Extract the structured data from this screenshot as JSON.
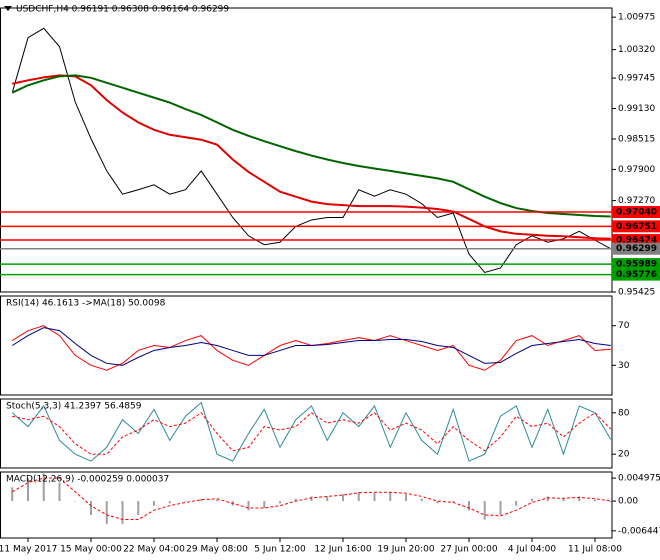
{
  "chart_data": [
    {
      "type": "line",
      "title": "USDCHF,H4 0.96191 0.96308 0.96164 0.96299",
      "ylim": [
        0.95425,
        1.0116
      ],
      "yticks": [
        1.00975,
        {
          "value": 1.0032,
          "label": "1.00320"
        },
        0.99745,
        {
          "value": 0.9913,
          "label": "0.99130"
        },
        0.98515,
        {
          "value": 0.979,
          "label": "0.97900"
        },
        {
          "value": 0.9727,
          "label": "0.97270"
        },
        0.95425
      ],
      "series": [
        {
          "color": "#000000",
          "values": [
            0.9945,
            1.0056,
            1.0075,
            1.0038,
            0.9926,
            0.9852,
            0.9787,
            0.974,
            0.9749,
            0.9759,
            0.974,
            0.9749,
            0.9787,
            0.974,
            0.9693,
            0.9656,
            0.9638,
            0.9643,
            0.9675,
            0.9688,
            0.9693,
            0.9693,
            0.9749,
            0.9736,
            0.9749,
            0.974,
            0.9721,
            0.9693,
            0.9702,
            0.9619,
            0.9582,
            0.9591,
            0.9638,
            0.9656,
            0.9643,
            0.965,
            0.9665,
            0.9647,
            0.96299
          ]
        },
        {
          "color": "#e00000",
          "values": [
            0.9963,
            0.997,
            0.9976,
            0.998,
            0.9978,
            0.996,
            0.993,
            0.9905,
            0.9885,
            0.987,
            0.986,
            0.9855,
            0.985,
            0.984,
            0.981,
            0.9785,
            0.9765,
            0.9745,
            0.9735,
            0.9725,
            0.972,
            0.9718,
            0.9716,
            0.9716,
            0.9716,
            0.9715,
            0.9713,
            0.971,
            0.9705,
            0.969,
            0.9675,
            0.9665,
            0.966,
            0.9658,
            0.9656,
            0.9655,
            0.9653,
            0.9651,
            0.965
          ]
        },
        {
          "color": "#006400",
          "values": [
            0.9945,
            0.996,
            0.997,
            0.9978,
            0.998,
            0.9975,
            0.9965,
            0.9955,
            0.9945,
            0.9935,
            0.9925,
            0.9912,
            0.99,
            0.9885,
            0.987,
            0.9858,
            0.9847,
            0.9837,
            0.9827,
            0.9818,
            0.981,
            0.9803,
            0.9797,
            0.9792,
            0.9787,
            0.9782,
            0.9777,
            0.9772,
            0.9765,
            0.975,
            0.9735,
            0.9722,
            0.9712,
            0.9706,
            0.9702,
            0.97,
            0.9698,
            0.9696,
            0.9695
          ]
        }
      ],
      "levels": [
        {
          "value": 0.9704,
          "label": "0.97040",
          "color": "#ff0000"
        },
        {
          "value": 0.96751,
          "color": "#ff0000"
        },
        {
          "value": 0.96474,
          "color": "#ff0000"
        },
        {
          "value": 0.96299,
          "color": "#808080"
        },
        {
          "value": 0.95989,
          "color": "#00a000"
        },
        {
          "value": 0.95776,
          "color": "#00a000"
        }
      ]
    },
    {
      "type": "line",
      "title": "RSI(14) 46.1613 ->MA(18) 50.0098",
      "ylim": [
        0,
        100
      ],
      "yticks": [
        70,
        30
      ],
      "series": [
        {
          "color": "#ff0000",
          "values": [
            55,
            65,
            70,
            60,
            40,
            30,
            25,
            32,
            45,
            50,
            48,
            55,
            60,
            45,
            35,
            30,
            40,
            50,
            55,
            50,
            52,
            55,
            58,
            55,
            60,
            55,
            50,
            45,
            50,
            30,
            25,
            35,
            55,
            60,
            50,
            55,
            60,
            45,
            46.1613
          ]
        },
        {
          "color": "#000080",
          "values": [
            50,
            60,
            68,
            65,
            52,
            40,
            32,
            30,
            38,
            45,
            48,
            50,
            53,
            50,
            45,
            40,
            40,
            45,
            50,
            50,
            51,
            53,
            55,
            55,
            56,
            56,
            54,
            50,
            48,
            40,
            32,
            33,
            42,
            50,
            52,
            54,
            56,
            52,
            50.0098
          ]
        }
      ]
    },
    {
      "type": "line",
      "title": "Stoch(5,3,3) 41.2397 56.4859",
      "ylim": [
        0,
        100
      ],
      "yticks": [
        80,
        20
      ],
      "series": [
        {
          "color": "#2e8b9b",
          "values": [
            80,
            60,
            90,
            40,
            20,
            10,
            30,
            70,
            50,
            85,
            40,
            75,
            95,
            20,
            10,
            50,
            85,
            30,
            70,
            90,
            40,
            80,
            60,
            90,
            30,
            80,
            40,
            20,
            85,
            10,
            20,
            75,
            90,
            30,
            85,
            20,
            90,
            80,
            41.2397
          ]
        },
        {
          "color": "#ff0000",
          "dashed": true,
          "values": [
            75,
            70,
            75,
            60,
            35,
            20,
            20,
            45,
            55,
            70,
            60,
            65,
            80,
            50,
            25,
            30,
            60,
            55,
            60,
            80,
            65,
            70,
            65,
            80,
            55,
            65,
            55,
            35,
            60,
            40,
            25,
            45,
            75,
            60,
            65,
            45,
            65,
            80,
            56.4859
          ]
        }
      ]
    },
    {
      "type": "bar",
      "title": "MACD(12,26,9) -0.000259 0.000037",
      "ylim": [
        -0.008,
        0.0063
      ],
      "yticks": [
        0.004975,
        {
          "value": 0,
          "label": "0.00"
        },
        -0.006447
      ],
      "categories": [
        null,
        "11 May 2017",
        null,
        null,
        null,
        "15 May 00:00",
        null,
        null,
        null,
        "22 May 04:00",
        null,
        null,
        null,
        "29 May 08:00",
        null,
        null,
        null,
        "5 Jun 12:00",
        null,
        null,
        null,
        "12 Jun 16:00",
        null,
        null,
        null,
        "19 Jun 20:00",
        null,
        null,
        null,
        "27 Jun 00:00",
        null,
        null,
        null,
        "4 Jul 04:00",
        null,
        null,
        null,
        "11 Jul 08:00",
        null
      ],
      "series": [
        {
          "color": "#a0a0a0",
          "values": [
            0.003,
            0.005,
            0.006,
            0.004,
            0,
            -0.003,
            -0.005,
            -0.005,
            -0.003,
            -0.001,
            -0.0005,
            0,
            0.0005,
            0.0003,
            -0.001,
            -0.002,
            -0.0015,
            -0.0005,
            0.0005,
            0.001,
            0.001,
            0.0015,
            0.002,
            0.0018,
            0.002,
            0.0015,
            0.0005,
            -0.0005,
            -0.0003,
            -0.002,
            -0.004,
            -0.003,
            -0.001,
            0.0005,
            0.001,
            0.0005,
            0.001,
            0.0003,
            -0.000259
          ]
        },
        {
          "color": "#ff0000",
          "dashed": true,
          "values": [
            0.002,
            0.004,
            0.005,
            0.005,
            0.002,
            -0.001,
            -0.003,
            -0.004,
            -0.004,
            -0.002,
            -0.001,
            -0.0003,
            0.0003,
            0.0005,
            -0.0005,
            -0.0015,
            -0.0015,
            -0.001,
            0,
            0.0007,
            0.001,
            0.0013,
            0.0018,
            0.0019,
            0.0019,
            0.0017,
            0.001,
            0,
            -0.0003,
            -0.0015,
            -0.003,
            -0.0032,
            -0.002,
            -0.0003,
            0.0007,
            0.0006,
            0.0008,
            0.0005,
            3.7e-05
          ]
        }
      ]
    }
  ]
}
